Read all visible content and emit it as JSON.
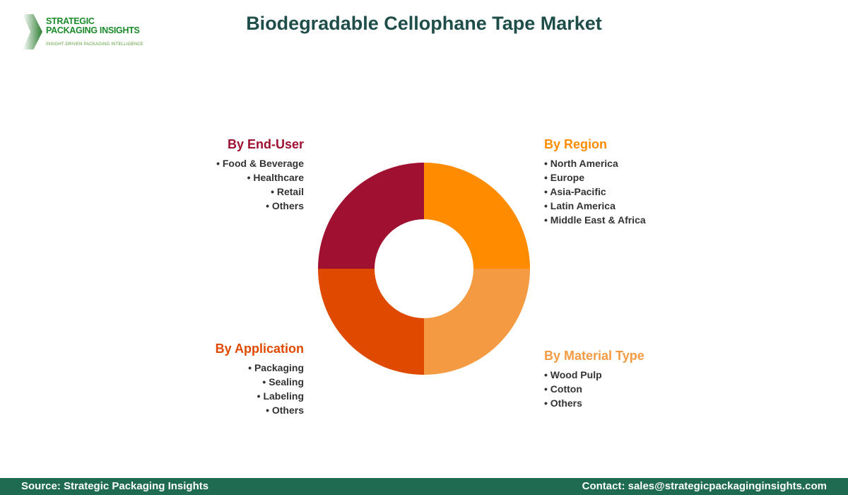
{
  "logo": {
    "line1": "STRATEGIC",
    "line2": "PACKAGING INSIGHTS",
    "tagline": "INSIGHT-DRIVEN PACKAGING INTELLIGENCE"
  },
  "title": "Biodegradable Cellophane Tape Market",
  "segments": [
    {
      "title": "By Region",
      "color": "#FF8C00",
      "items": [
        "North America",
        "Europe",
        "Asia-Pacific",
        "Latin America",
        "Middle East & Africa"
      ]
    },
    {
      "title": "By Material Type",
      "color": "#F49A42",
      "items": [
        "Wood Pulp",
        "Cotton",
        "Others"
      ]
    },
    {
      "title": "By Application",
      "color": "#E04A00",
      "items": [
        "Packaging",
        "Sealing",
        "Labeling",
        "Others"
      ]
    },
    {
      "title": "By End-User",
      "color": "#A01030",
      "items": [
        "Food & Beverage",
        "Healthcare",
        "Retail",
        "Others"
      ]
    }
  ],
  "footer": {
    "source": "Source: Strategic Packaging Insights",
    "contact": "Contact: sales@strategicpackaginginsights.com"
  }
}
